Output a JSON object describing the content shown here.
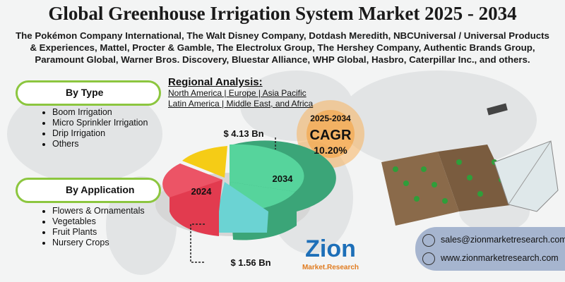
{
  "header": {
    "title": "Global Greenhouse Irrigation System Market 2025 - 2034",
    "companies": "The Pokémon Company International, The Walt Disney Company, Dotdash Meredith, NBCUniversal / Universal Products & Experiences, Mattel, Procter & Gamble, The Electrolux Group, The Hershey Company, Authentic Brands Group, Paramount Global, Warner Bros. Discovery, Bluestar Alliance, WHP Global, Hasbro, Caterpillar Inc., and others."
  },
  "segments": [
    {
      "title": "By Type",
      "items": [
        "Boom Irrigation",
        "Micro Sprinkler Irrigation",
        "Drip Irrigation",
        "Others"
      ]
    },
    {
      "title": "By Application",
      "items": [
        "Flowers & Ornamentals",
        "Vegetables",
        "Fruit Plants",
        "Nursery Crops"
      ]
    }
  ],
  "regional": {
    "title": "Regional Analysis:",
    "lines": [
      "North America | Europe | Asia Pacific",
      "Latin America | Middle East, and Africa"
    ]
  },
  "market": {
    "year_start": "2024",
    "year_end": "2034",
    "value_end": "$ 4.13 Bn",
    "value_start": "$ 1.56 Bn",
    "cagr_period": "2025-2034",
    "cagr_label": "CAGR",
    "cagr_value": "10.20%"
  },
  "logo": {
    "name": "Zion",
    "sub": "Market.Research"
  },
  "contact": {
    "email": "sales@zionmarketresearch.com",
    "website": "www.zionmarketresearch.com"
  }
}
